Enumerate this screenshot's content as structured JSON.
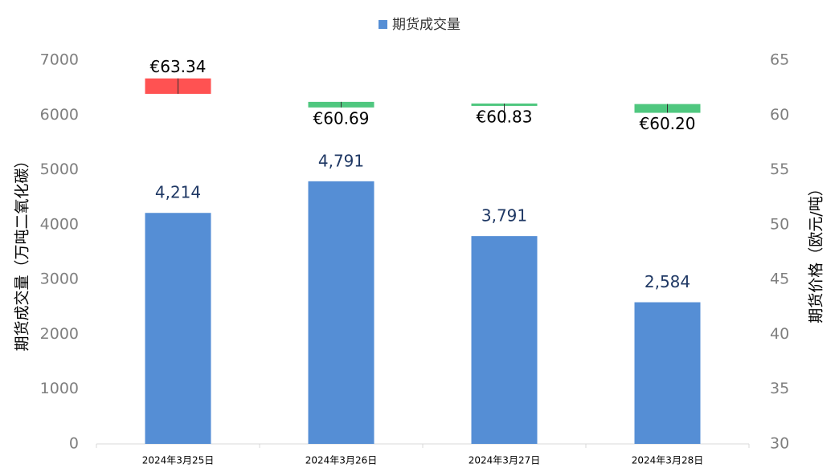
{
  "chart_data": {
    "type": "bar",
    "categories": [
      "2024年3月25日",
      "2024年3月26日",
      "2024年3月27日",
      "2024年3月28日"
    ],
    "series": [
      {
        "name": "期货成交量",
        "color": "#558ed5",
        "values": [
          4214,
          4791,
          3791,
          2584
        ],
        "value_labels": [
          "4,214",
          "4,791",
          "3,791",
          "2,584"
        ]
      },
      {
        "type": "candlestick",
        "axis": "y2",
        "up_color": "#ff5252",
        "down_color": "#4fc77f",
        "open": [
          61.93,
          61.2,
          61.05,
          61.0
        ],
        "high": [
          63.34,
          61.2,
          61.05,
          61.0
        ],
        "low": [
          61.93,
          60.69,
          59.3,
          60.2
        ],
        "close": [
          63.34,
          60.69,
          60.83,
          60.2
        ],
        "value_labels": [
          "€63.34",
          "€60.69",
          "€60.83",
          "€60.20"
        ]
      }
    ],
    "ylabel": "期货成交量（万吨二氧化碳）",
    "y2label": "期货价格（欧元/吨）",
    "ylim": [
      0,
      7000
    ],
    "yticks": [
      0,
      1000,
      2000,
      3000,
      4000,
      5000,
      6000,
      7000
    ],
    "y2lim": [
      30,
      65
    ],
    "y2ticks": [
      30,
      35,
      40,
      45,
      50,
      55,
      60,
      65
    ],
    "legend": "top"
  }
}
